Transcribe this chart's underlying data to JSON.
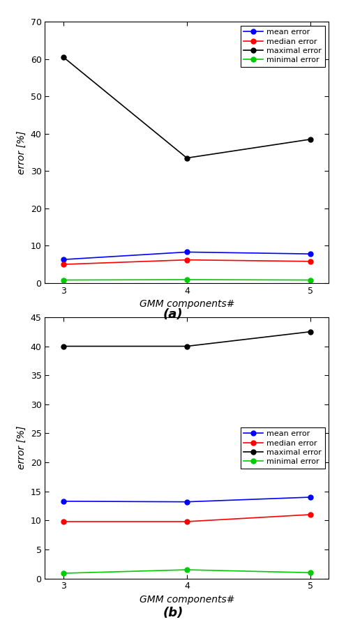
{
  "subplot_a": {
    "x": [
      3,
      4,
      5
    ],
    "mean_error": [
      6.3,
      8.3,
      7.8
    ],
    "median_error": [
      5.0,
      6.2,
      5.8
    ],
    "maximal_error": [
      60.5,
      33.5,
      38.5
    ],
    "minimal_error": [
      0.8,
      0.9,
      0.8
    ],
    "ylim": [
      0,
      70
    ],
    "yticks": [
      0,
      10,
      20,
      30,
      40,
      50,
      60,
      70
    ],
    "xlabel": "GMM components#",
    "ylabel": "error [%]",
    "label": "(a)"
  },
  "subplot_b": {
    "x": [
      3,
      4,
      5
    ],
    "mean_error": [
      13.3,
      13.2,
      14.0
    ],
    "median_error": [
      9.8,
      9.8,
      11.0
    ],
    "maximal_error": [
      40.0,
      40.0,
      42.5
    ],
    "minimal_error": [
      0.9,
      1.5,
      1.0
    ],
    "ylim": [
      0,
      45
    ],
    "yticks": [
      0,
      5,
      10,
      15,
      20,
      25,
      30,
      35,
      40,
      45
    ],
    "xlabel": "GMM components#",
    "ylabel": "error [%]",
    "label": "(b)"
  },
  "colors": {
    "mean": "#0000ff",
    "median": "#ff0000",
    "maximal": "#000000",
    "minimal": "#00cc00"
  },
  "legend_labels": [
    "mean error",
    "median error",
    "maximal error",
    "minimal error"
  ],
  "line_width": 1.2,
  "marker_size": 5,
  "bg_color": "#ffffff"
}
